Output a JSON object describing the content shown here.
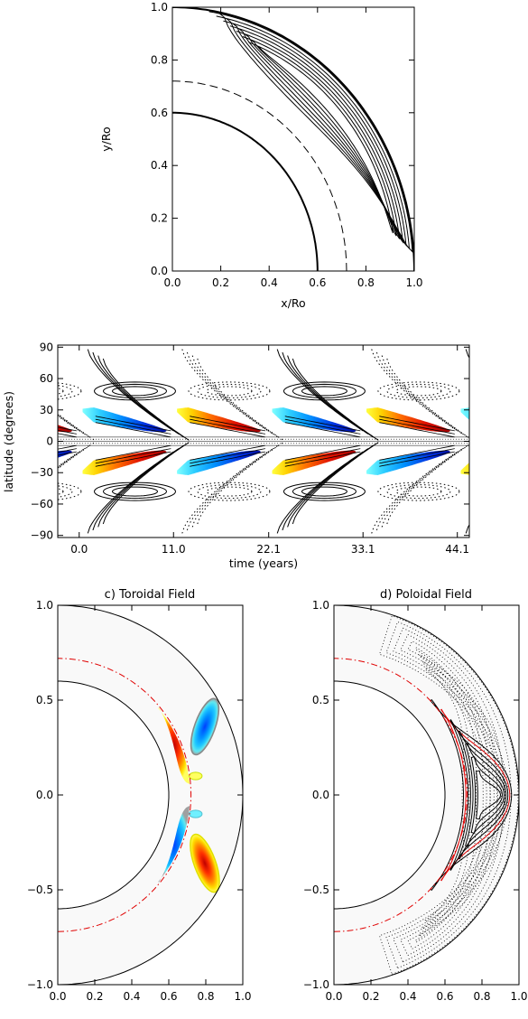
{
  "chart_data": [
    {
      "type": "contour",
      "panel": "meridional-circulation",
      "xlabel": "x/Ro",
      "ylabel": "y/Ro",
      "xlim": [
        0.0,
        1.0
      ],
      "ylim": [
        0.0,
        1.0
      ],
      "xticks": [
        "0.0",
        "0.2",
        "0.4",
        "0.6",
        "0.8",
        "1.0"
      ],
      "yticks": [
        "0.0",
        "0.2",
        "0.4",
        "0.6",
        "0.8",
        "1.0"
      ],
      "inner_radius": 0.6,
      "tachocline_radius": 0.72,
      "outer_radius": 1.0,
      "contour_levels": 7,
      "colors": {
        "line": "#000000"
      }
    },
    {
      "type": "heatmap",
      "panel": "butterfly-diagram",
      "xlabel": "time (years)",
      "ylabel": "latitude (degrees)",
      "xlim": [
        -2.5,
        45.5
      ],
      "ylim": [
        -92,
        92
      ],
      "xticks": [
        "0.0",
        "11.0",
        "22.1",
        "33.1",
        "44.1"
      ],
      "xtick_values": [
        0.0,
        11.0,
        22.1,
        33.1,
        44.1
      ],
      "yticks": [
        "90",
        "60",
        "30",
        "0",
        "−30",
        "−60",
        "−90"
      ],
      "ytick_values": [
        90,
        60,
        30,
        0,
        -30,
        -60,
        -90
      ],
      "half_period_years": 11.0,
      "toroidal_lobe_latitude": [
        10,
        25
      ],
      "colors": {
        "positive": [
          "#c00000",
          "#ff4000",
          "#ff9000",
          "#ffe000",
          "#ffff40"
        ],
        "negative": [
          "#0020c0",
          "#0060ff",
          "#00a0ff",
          "#40d8ff",
          "#90ffff"
        ]
      }
    },
    {
      "type": "heatmap",
      "panel": "toroidal-field",
      "title": "c) Toroidal Field",
      "xlim": [
        0.0,
        1.0
      ],
      "ylim": [
        -1.0,
        1.0
      ],
      "xticks": [
        "0.0",
        "0.2",
        "0.4",
        "0.6",
        "0.8",
        "1.0"
      ],
      "yticks": [
        "1.0",
        "0.5",
        "0.0",
        "−0.5",
        "−1.0"
      ],
      "inner_radius": 0.6,
      "tachocline_radius": 0.72,
      "outer_radius": 1.0,
      "colors": {
        "tachocline": "#e00000",
        "background": "#f9f9f9"
      }
    },
    {
      "type": "contour",
      "panel": "poloidal-field",
      "title": "d) Poloidal Field",
      "xlim": [
        0.0,
        1.0
      ],
      "ylim": [
        -1.0,
        1.0
      ],
      "xticks": [
        "0.0",
        "0.2",
        "0.4",
        "0.6",
        "0.8",
        "1.0"
      ],
      "yticks": [
        "1.0",
        "0.5",
        "0.0",
        "−0.5",
        "−1.0"
      ],
      "inner_radius": 0.6,
      "tachocline_radius": 0.72,
      "outer_radius": 1.0,
      "colors": {
        "tachocline": "#e00000",
        "line": "#000000",
        "background": "#f9f9f9"
      }
    }
  ]
}
